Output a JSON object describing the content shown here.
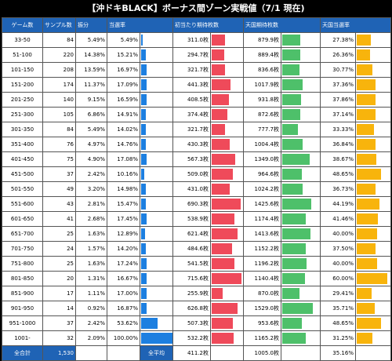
{
  "title": "【沖ドキBLACK】ボーナス間ゾーン実戦値（7/1 現在)",
  "headers": {
    "zone": "ゲーム数",
    "samples": "サンプル数",
    "dist": "振分",
    "hit": "当選率",
    "medals": "初当たり期待枚数",
    "tengoku_medals": "天国期待枚数",
    "tengoku_hit": "天国当選率"
  },
  "rows": [
    {
      "zone": "33-50",
      "samples": "84",
      "dist": "5.49%",
      "hit": "5.49%",
      "hit_v": 5.49,
      "medals": "311.0枚",
      "medals_v": 311.0,
      "tmedals": "879.9枚",
      "tmedals_v": 879.9,
      "thit": "27.38%",
      "thit_v": 27.38
    },
    {
      "zone": "51-100",
      "samples": "220",
      "dist": "14.38%",
      "hit": "15.21%",
      "hit_v": 15.21,
      "medals": "294.7枚",
      "medals_v": 294.7,
      "tmedals": "889.4枚",
      "tmedals_v": 889.4,
      "thit": "26.36%",
      "thit_v": 26.36
    },
    {
      "zone": "101-150",
      "samples": "208",
      "dist": "13.59%",
      "hit": "16.97%",
      "hit_v": 16.97,
      "medals": "321.7枚",
      "medals_v": 321.7,
      "tmedals": "836.6枚",
      "tmedals_v": 836.6,
      "thit": "30.77%",
      "thit_v": 30.77
    },
    {
      "zone": "151-200",
      "samples": "174",
      "dist": "11.37%",
      "hit": "17.09%",
      "hit_v": 17.09,
      "medals": "441.3枚",
      "medals_v": 441.3,
      "tmedals": "1017.9枚",
      "tmedals_v": 1017.9,
      "thit": "37.36%",
      "thit_v": 37.36
    },
    {
      "zone": "201-250",
      "samples": "140",
      "dist": "9.15%",
      "hit": "16.59%",
      "hit_v": 16.59,
      "medals": "408.5枚",
      "medals_v": 408.5,
      "tmedals": "931.8枚",
      "tmedals_v": 931.8,
      "thit": "37.86%",
      "thit_v": 37.86
    },
    {
      "zone": "251-300",
      "samples": "105",
      "dist": "6.86%",
      "hit": "14.91%",
      "hit_v": 14.91,
      "medals": "374.4枚",
      "medals_v": 374.4,
      "tmedals": "872.6枚",
      "tmedals_v": 872.6,
      "thit": "37.14%",
      "thit_v": 37.14
    },
    {
      "zone": "301-350",
      "samples": "84",
      "dist": "5.49%",
      "hit": "14.02%",
      "hit_v": 14.02,
      "medals": "321.7枚",
      "medals_v": 321.7,
      "tmedals": "777.7枚",
      "tmedals_v": 777.7,
      "thit": "33.33%",
      "thit_v": 33.33
    },
    {
      "zone": "351-400",
      "samples": "76",
      "dist": "4.97%",
      "hit": "14.76%",
      "hit_v": 14.76,
      "medals": "430.3枚",
      "medals_v": 430.3,
      "tmedals": "1004.4枚",
      "tmedals_v": 1004.4,
      "thit": "36.84%",
      "thit_v": 36.84
    },
    {
      "zone": "401-450",
      "samples": "75",
      "dist": "4.90%",
      "hit": "17.08%",
      "hit_v": 17.08,
      "medals": "567.3枚",
      "medals_v": 567.3,
      "tmedals": "1349.0枚",
      "tmedals_v": 1349.0,
      "thit": "38.67%",
      "thit_v": 38.67
    },
    {
      "zone": "451-500",
      "samples": "37",
      "dist": "2.42%",
      "hit": "10.16%",
      "hit_v": 10.16,
      "medals": "509.0枚",
      "medals_v": 509.0,
      "tmedals": "964.6枚",
      "tmedals_v": 964.6,
      "thit": "48.65%",
      "thit_v": 48.65
    },
    {
      "zone": "501-550",
      "samples": "49",
      "dist": "3.20%",
      "hit": "14.98%",
      "hit_v": 14.98,
      "medals": "431.0枚",
      "medals_v": 431.0,
      "tmedals": "1024.2枚",
      "tmedals_v": 1024.2,
      "thit": "36.73%",
      "thit_v": 36.73
    },
    {
      "zone": "551-600",
      "samples": "43",
      "dist": "2.81%",
      "hit": "15.47%",
      "hit_v": 15.47,
      "medals": "690.3枚",
      "medals_v": 690.3,
      "tmedals": "1425.6枚",
      "tmedals_v": 1425.6,
      "thit": "44.19%",
      "thit_v": 44.19
    },
    {
      "zone": "601-650",
      "samples": "41",
      "dist": "2.68%",
      "hit": "17.45%",
      "hit_v": 17.45,
      "medals": "538.9枚",
      "medals_v": 538.9,
      "tmedals": "1174.4枚",
      "tmedals_v": 1174.4,
      "thit": "41.46%",
      "thit_v": 41.46
    },
    {
      "zone": "651-700",
      "samples": "25",
      "dist": "1.63%",
      "hit": "12.89%",
      "hit_v": 12.89,
      "medals": "621.4枚",
      "medals_v": 621.4,
      "tmedals": "1413.6枚",
      "tmedals_v": 1413.6,
      "thit": "40.00%",
      "thit_v": 40.0
    },
    {
      "zone": "701-750",
      "samples": "24",
      "dist": "1.57%",
      "hit": "14.20%",
      "hit_v": 14.2,
      "medals": "484.6枚",
      "medals_v": 484.6,
      "tmedals": "1152.2枚",
      "tmedals_v": 1152.2,
      "thit": "37.50%",
      "thit_v": 37.5
    },
    {
      "zone": "751-800",
      "samples": "25",
      "dist": "1.63%",
      "hit": "17.24%",
      "hit_v": 17.24,
      "medals": "541.5枚",
      "medals_v": 541.5,
      "tmedals": "1196.2枚",
      "tmedals_v": 1196.2,
      "thit": "40.00%",
      "thit_v": 40.0
    },
    {
      "zone": "801-850",
      "samples": "20",
      "dist": "1.31%",
      "hit": "16.67%",
      "hit_v": 16.67,
      "medals": "715.6枚",
      "medals_v": 715.6,
      "tmedals": "1140.4枚",
      "tmedals_v": 1140.4,
      "thit": "60.00%",
      "thit_v": 60.0
    },
    {
      "zone": "851-900",
      "samples": "17",
      "dist": "1.11%",
      "hit": "17.00%",
      "hit_v": 17.0,
      "medals": "255.9枚",
      "medals_v": 255.9,
      "tmedals": "870.0枚",
      "tmedals_v": 870.0,
      "thit": "29.41%",
      "thit_v": 29.41
    },
    {
      "zone": "901-950",
      "samples": "14",
      "dist": "0.92%",
      "hit": "16.87%",
      "hit_v": 16.87,
      "medals": "626.8枚",
      "medals_v": 626.8,
      "tmedals": "1529.0枚",
      "tmedals_v": 1529.0,
      "thit": "35.71%",
      "thit_v": 35.71
    },
    {
      "zone": "951-1000",
      "samples": "37",
      "dist": "2.42%",
      "hit": "53.62%",
      "hit_v": 53.62,
      "medals": "507.3枚",
      "medals_v": 507.3,
      "tmedals": "953.6枚",
      "tmedals_v": 953.6,
      "thit": "48.65%",
      "thit_v": 48.65
    },
    {
      "zone": "1001-",
      "samples": "32",
      "dist": "2.09%",
      "hit": "100.00%",
      "hit_v": 100.0,
      "medals": "532.2枚",
      "medals_v": 532.2,
      "tmedals": "1165.2枚",
      "tmedals_v": 1165.2,
      "thit": "31.25%",
      "thit_v": 31.25
    }
  ],
  "total": {
    "label": "全合計",
    "samples": "1,530",
    "avg_label": "全平均",
    "medals": "411.2枚",
    "tmedals": "1005.0枚",
    "thit": "35.16%"
  },
  "bar_max": {
    "hit": 100,
    "medals": 750,
    "tmedals": 1550,
    "thit": 62
  },
  "colors": {
    "header": "#1f63b5",
    "hit_bar": "#1d7fe0",
    "medals_bar": "#ef4a5a",
    "tmedals_bar": "#4ec06a",
    "thit_bar": "#f8b40c"
  }
}
